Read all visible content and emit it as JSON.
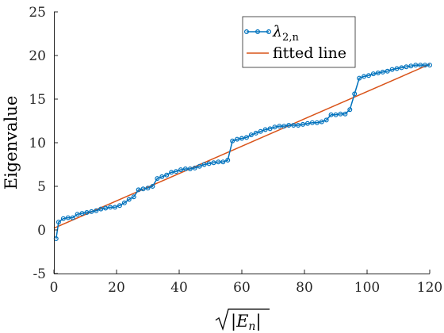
{
  "chart_data": {
    "type": "line",
    "title": "",
    "xlabel": "√|E_n|",
    "ylabel": "Eigenvalue",
    "xlim": [
      0,
      120
    ],
    "ylim": [
      -5,
      25
    ],
    "xticks": [
      "0",
      "20",
      "40",
      "60",
      "80",
      "100",
      "120"
    ],
    "yticks": [
      "-5",
      "0",
      "5",
      "10",
      "15",
      "20",
      "25"
    ],
    "grid": false,
    "legend_position": "top-right",
    "series": [
      {
        "name": "λ2,n",
        "label_base": "λ",
        "label_sub": "2,n",
        "color": "#0072BD",
        "marker": "circle",
        "x": [
          0.7,
          1.5,
          3.0,
          4.5,
          6.0,
          7.5,
          9.0,
          10.5,
          12.0,
          13.5,
          15.0,
          16.5,
          18.0,
          19.5,
          21.0,
          22.5,
          24.0,
          25.5,
          27.0,
          28.5,
          30.0,
          31.5,
          33.0,
          34.5,
          36.0,
          37.5,
          39.0,
          40.5,
          42.0,
          43.5,
          45.0,
          46.5,
          48.0,
          49.5,
          51.0,
          52.5,
          54.0,
          55.5,
          57.0,
          58.5,
          60.0,
          61.5,
          63.0,
          64.5,
          66.0,
          67.5,
          69.0,
          70.5,
          72.0,
          73.5,
          75.0,
          76.5,
          78.0,
          79.5,
          81.0,
          82.5,
          84.0,
          85.5,
          87.0,
          88.5,
          90.0,
          91.5,
          93.0,
          94.5,
          96.0,
          97.5,
          99.0,
          100.5,
          102.0,
          103.5,
          105.0,
          106.5,
          108.0,
          109.5,
          111.0,
          112.5,
          114.0,
          115.5,
          117.0,
          118.5,
          120.0
        ],
        "y": [
          -1.0,
          0.9,
          1.3,
          1.4,
          1.4,
          1.8,
          1.9,
          2.0,
          2.1,
          2.2,
          2.4,
          2.5,
          2.6,
          2.6,
          2.8,
          3.1,
          3.5,
          3.8,
          4.6,
          4.7,
          4.8,
          5.0,
          5.9,
          6.1,
          6.3,
          6.6,
          6.7,
          6.9,
          7.0,
          7.0,
          7.1,
          7.3,
          7.5,
          7.6,
          7.7,
          7.8,
          7.8,
          8.0,
          10.2,
          10.4,
          10.5,
          10.6,
          10.9,
          11.1,
          11.3,
          11.5,
          11.6,
          11.8,
          11.9,
          11.9,
          12.0,
          12.0,
          12.0,
          12.1,
          12.2,
          12.3,
          12.3,
          12.4,
          12.6,
          13.2,
          13.2,
          13.3,
          13.3,
          13.8,
          15.6,
          17.4,
          17.6,
          17.7,
          17.9,
          18.0,
          18.1,
          18.2,
          18.4,
          18.5,
          18.6,
          18.7,
          18.8,
          18.9,
          18.9,
          18.9,
          18.9
        ]
      },
      {
        "name": "fitted line",
        "color": "#D95319",
        "x": [
          0,
          120
        ],
        "y": [
          0.2,
          19.0
        ]
      }
    ]
  }
}
